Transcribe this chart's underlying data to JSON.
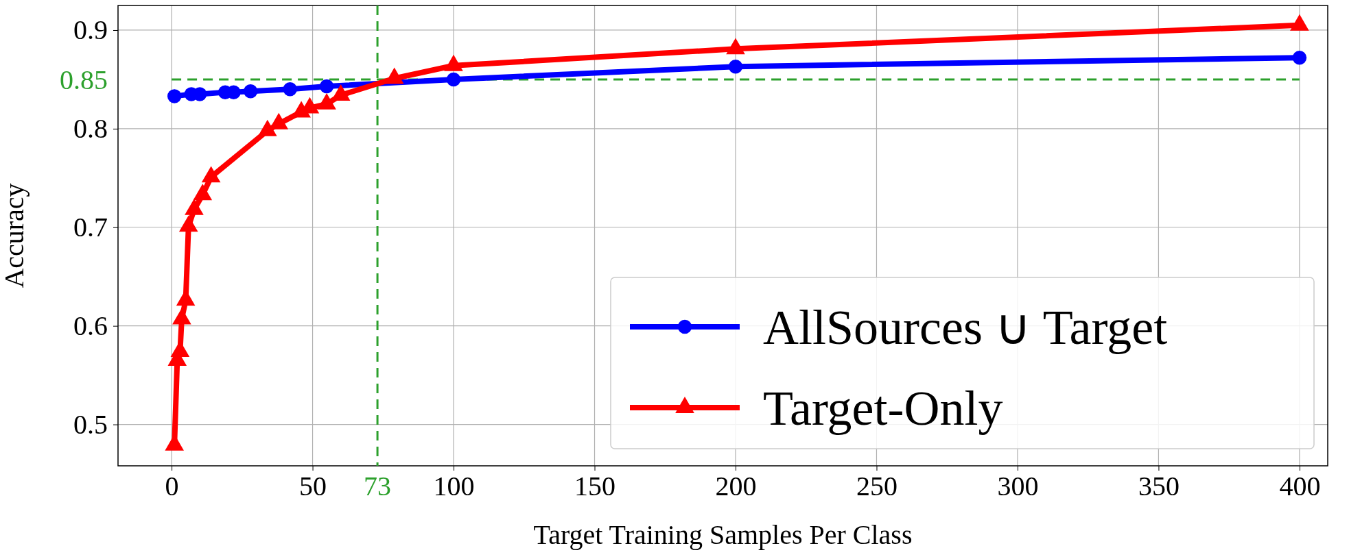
{
  "chart_data": {
    "type": "line",
    "xlabel": "Target Training Samples Per Class",
    "ylabel": "Accuracy",
    "xlim": [
      -19,
      410
    ],
    "ylim": [
      0.458,
      0.925
    ],
    "xticks": [
      0,
      50,
      100,
      150,
      200,
      250,
      300,
      350,
      400
    ],
    "yticks": [
      0.5,
      0.6,
      0.7,
      0.8,
      0.9
    ],
    "grid": true,
    "legend": "bottom right",
    "series": [
      {
        "name": "AllSources ∪ Target",
        "color": "#0000ff",
        "marker": "circle",
        "x": [
          1,
          7,
          10,
          19,
          22,
          28,
          42,
          55,
          100,
          200,
          400
        ],
        "values": [
          0.833,
          0.835,
          0.835,
          0.837,
          0.837,
          0.838,
          0.84,
          0.843,
          0.85,
          0.863,
          0.872
        ]
      },
      {
        "name": "Target-Only",
        "color": "#ff0000",
        "marker": "triangle",
        "x": [
          1,
          2,
          3,
          3.6,
          5,
          6,
          8,
          11,
          14,
          34,
          38,
          46,
          49,
          55,
          60,
          79,
          100,
          200,
          400
        ],
        "values": [
          0.479,
          0.565,
          0.574,
          0.607,
          0.626,
          0.701,
          0.718,
          0.733,
          0.751,
          0.798,
          0.805,
          0.817,
          0.821,
          0.825,
          0.834,
          0.851,
          0.864,
          0.881,
          0.905
        ]
      }
    ],
    "ref_lines": [
      {
        "axis": "y",
        "value": 0.85,
        "label": "0.85",
        "color": "#2ca02c",
        "line_style": "dashed"
      },
      {
        "axis": "x",
        "value": 73,
        "label": "73",
        "color": "#2ca02c",
        "line_style": "dashed"
      }
    ]
  }
}
